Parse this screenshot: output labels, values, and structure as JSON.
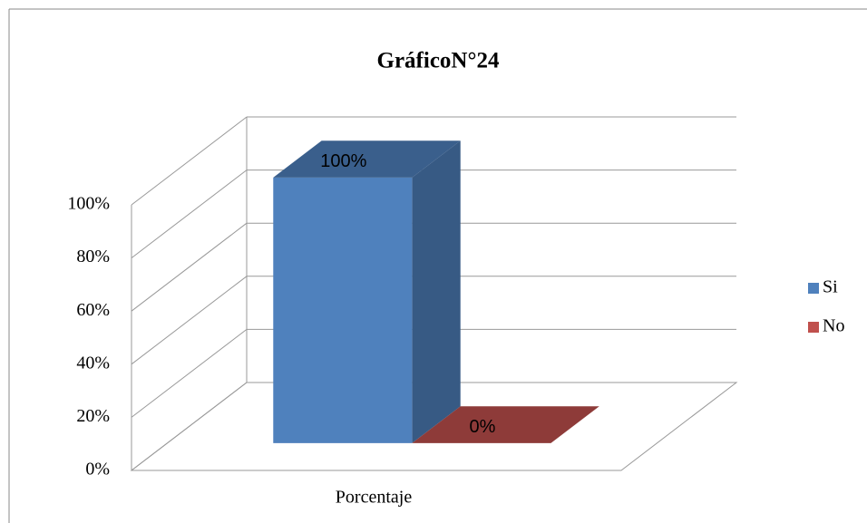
{
  "chart_data": {
    "type": "bar3d",
    "title": "GráficoN°24",
    "categories": [
      "Porcentaje"
    ],
    "series": [
      {
        "name": "Si",
        "color": "#4f81bd",
        "values": [
          100
        ],
        "value_labels": [
          "100%"
        ]
      },
      {
        "name": "No",
        "color": "#c0504d",
        "values": [
          0
        ],
        "value_labels": [
          "0%"
        ]
      }
    ],
    "ylim": [
      0,
      100
    ],
    "yticks": [
      {
        "value": 0,
        "label": "0%"
      },
      {
        "value": 20,
        "label": "20%"
      },
      {
        "value": 40,
        "label": "40%"
      },
      {
        "value": 60,
        "label": "60%"
      },
      {
        "value": 80,
        "label": "80%"
      },
      {
        "value": 100,
        "label": "100%"
      }
    ],
    "grid": true,
    "legend": "right"
  }
}
